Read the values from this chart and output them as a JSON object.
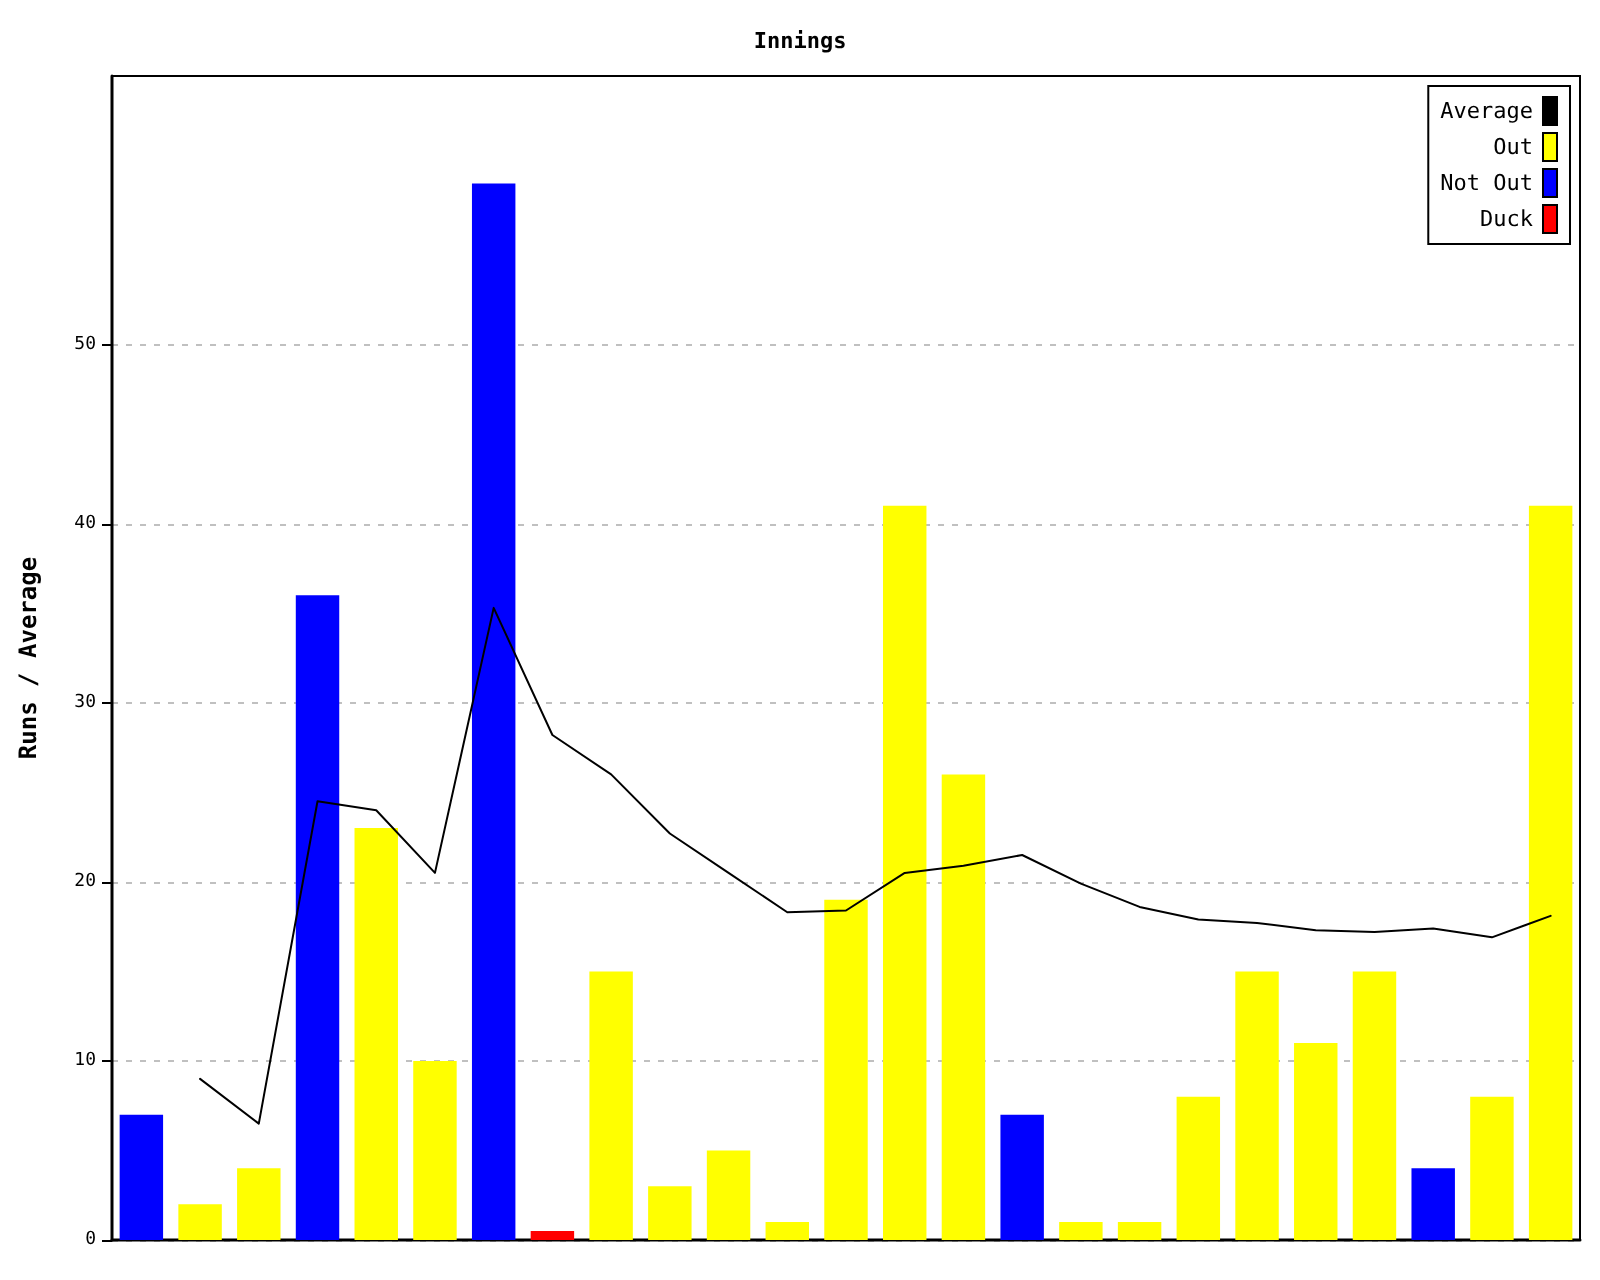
{
  "chart_data": {
    "type": "bar",
    "title": "Innings",
    "ylabel": "Runs / Average",
    "categories": [
      null,
      null,
      null,
      null,
      null,
      null,
      null,
      null,
      null,
      null,
      null,
      null,
      null,
      null,
      null,
      null,
      null,
      null,
      null,
      null,
      null,
      null,
      null,
      null,
      null
    ],
    "series": [
      {
        "name": "Average",
        "type": "line",
        "color": "#000000",
        "values": [
          null,
          9,
          6.5,
          24.5,
          24,
          20.5,
          35.3,
          28.2,
          26,
          22.7,
          20.5,
          18.3,
          18.4,
          20.5,
          20.9,
          21.5,
          19.9,
          18.6,
          17.9,
          17.7,
          17.3,
          17.2,
          17.4,
          16.9,
          18.1
        ]
      },
      {
        "name": "Out",
        "color": "#ffff00",
        "values": [
          null,
          2,
          4,
          null,
          23,
          10,
          null,
          null,
          15,
          3,
          5,
          1,
          19,
          41,
          26,
          null,
          1,
          1,
          8,
          15,
          11,
          15,
          null,
          8,
          41
        ]
      },
      {
        "name": "Not Out",
        "color": "#0000ff",
        "values": [
          7,
          null,
          null,
          36,
          null,
          null,
          59,
          null,
          null,
          null,
          null,
          null,
          null,
          null,
          null,
          7,
          null,
          null,
          null,
          null,
          null,
          null,
          4,
          null,
          null
        ]
      },
      {
        "name": "Duck",
        "color": "#ff0000",
        "values": [
          null,
          null,
          null,
          null,
          null,
          null,
          null,
          0.5,
          null,
          null,
          null,
          null,
          null,
          null,
          null,
          null,
          null,
          null,
          null,
          null,
          null,
          null,
          null,
          null,
          null
        ]
      }
    ],
    "stacked": true,
    "ylim": [
      0,
      65
    ],
    "yticks": [
      0,
      10,
      20,
      30,
      40,
      50
    ],
    "grid": "y",
    "legend": "top right",
    "tick_labels": "y",
    "marker": "none",
    "line_style": "solid"
  }
}
